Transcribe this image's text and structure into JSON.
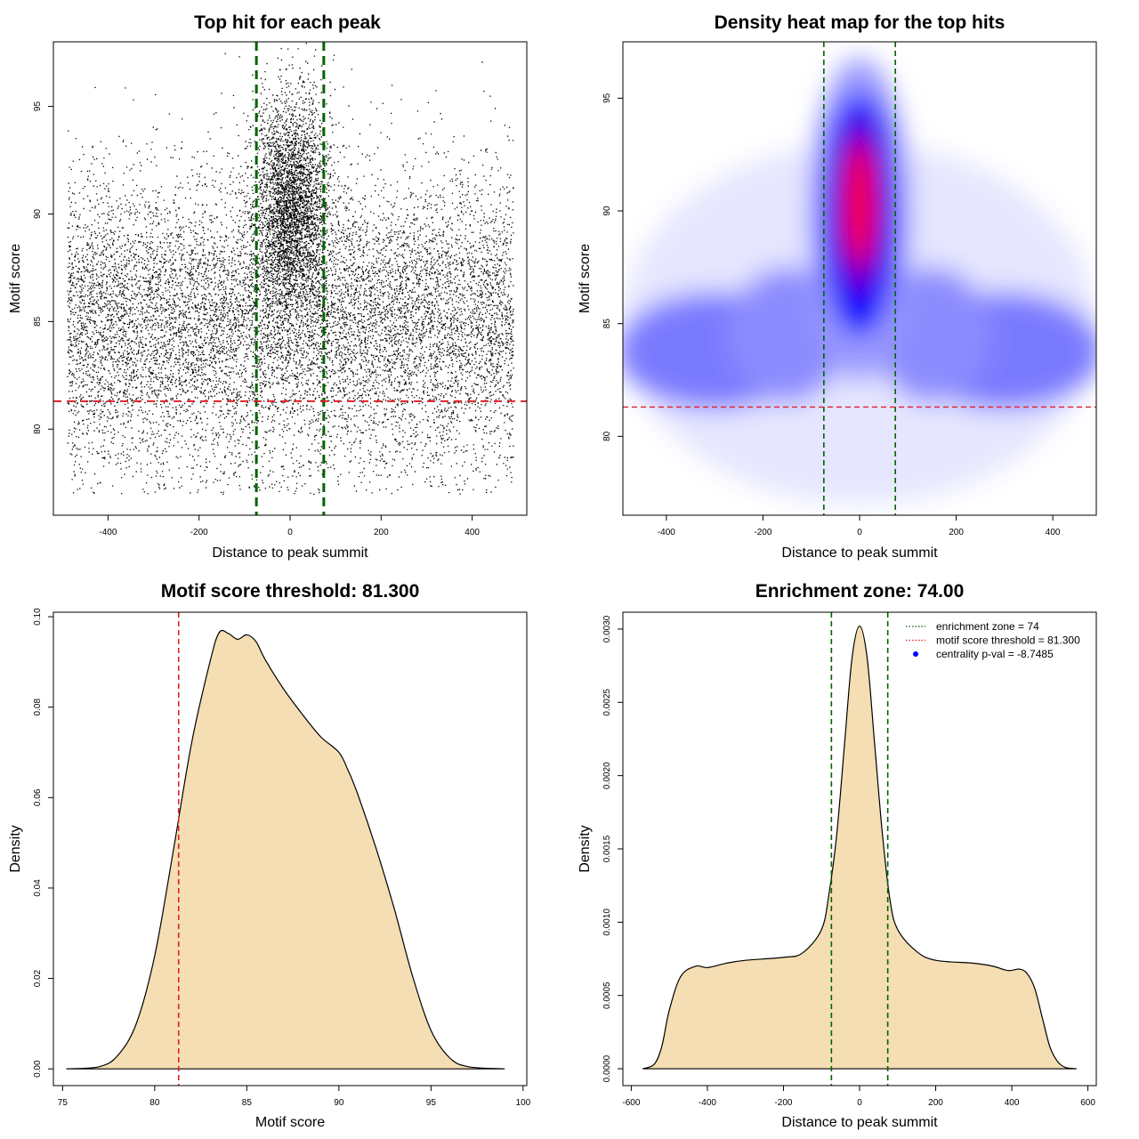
{
  "chart_data": [
    {
      "id": "scatter",
      "type": "scatter",
      "title": "Top hit for each peak",
      "xlabel": "Distance to peak summit",
      "ylabel": "Motif score",
      "xlim": [
        -520,
        520
      ],
      "ylim": [
        76,
        98
      ],
      "xticks": [
        -400,
        -200,
        0,
        200,
        400
      ],
      "yticks": [
        80,
        85,
        90,
        95
      ],
      "vlines": [
        -74,
        74
      ],
      "hline": 81.3,
      "point_count_background": 11000,
      "point_count_center": 3600,
      "background_x_range": [
        -490,
        490
      ],
      "background_y_mean": 85,
      "center_y_mean": 90.5,
      "colors": {
        "points": "#000000",
        "vline": "#006400",
        "hline": "#e0202a"
      }
    },
    {
      "id": "heatmap",
      "type": "heatmap",
      "title": "Density heat map for the top hits",
      "xlabel": "Distance to peak summit",
      "ylabel": "Motif score",
      "xlim": [
        -490,
        490
      ],
      "ylim": [
        76.5,
        97.5
      ],
      "xticks": [
        -400,
        -200,
        0,
        200,
        400
      ],
      "yticks": [
        80,
        85,
        90,
        95
      ],
      "vlines": [
        -74,
        74
      ],
      "hline": 81.3,
      "peak_center": [
        0,
        90.3
      ],
      "colors": {
        "low": "#ffffff",
        "mid": "#0000ff",
        "high": "#ff0000",
        "vline": "#006400",
        "hline": "#e0202a"
      }
    },
    {
      "id": "score_density",
      "type": "area",
      "title": "Motif score threshold: 81.300",
      "xlabel": "Motif score",
      "ylabel": "Density",
      "xlim": [
        74.5,
        100.2
      ],
      "ylim": [
        -0.0037,
        0.101
      ],
      "xticks": [
        75,
        80,
        85,
        90,
        95,
        100
      ],
      "yticks": [
        0.0,
        0.02,
        0.04,
        0.06,
        0.08,
        0.1
      ],
      "ytick_labels": [
        "0.00",
        "0.02",
        "0.04",
        "0.06",
        "0.08",
        "0.10"
      ],
      "vline": 81.3,
      "x": [
        75.2,
        77,
        78,
        79,
        80,
        81,
        82,
        83,
        83.5,
        84,
        84.5,
        85,
        85.5,
        86,
        87,
        88,
        89,
        90,
        90.5,
        91,
        92,
        93,
        94,
        95,
        96,
        97,
        99
      ],
      "y": [
        0.0,
        0.0005,
        0.003,
        0.01,
        0.025,
        0.048,
        0.072,
        0.09,
        0.0965,
        0.0963,
        0.095,
        0.096,
        0.0945,
        0.0905,
        0.084,
        0.0785,
        0.0735,
        0.07,
        0.066,
        0.061,
        0.049,
        0.0355,
        0.0205,
        0.0085,
        0.0025,
        0.0005,
        0.0
      ],
      "colors": {
        "fill": "#f5deb3",
        "line": "#000000",
        "vline": "#e0202a"
      }
    },
    {
      "id": "distance_density",
      "type": "area",
      "title": "Enrichment zone: 74.00",
      "xlabel": "Distance to peak summit",
      "ylabel": "Density",
      "xlim": [
        -622,
        622
      ],
      "ylim": [
        -0.000115,
        0.003115
      ],
      "xticks": [
        -600,
        -400,
        -200,
        0,
        200,
        400,
        600
      ],
      "yticks": [
        0.0,
        0.0005,
        0.001,
        0.0015,
        0.002,
        0.0025,
        0.003
      ],
      "ytick_labels": [
        "0.0000",
        "0.0005",
        "0.0010",
        "0.0015",
        "0.0020",
        "0.0025",
        "0.0030"
      ],
      "vlines": [
        -74,
        74
      ],
      "x": [
        -570,
        -540,
        -520,
        -500,
        -470,
        -430,
        -400,
        -350,
        -300,
        -200,
        -150,
        -100,
        -80,
        -60,
        -40,
        -20,
        0,
        20,
        40,
        60,
        80,
        100,
        150,
        200,
        300,
        350,
        390,
        420,
        440,
        460,
        480,
        500,
        520,
        540,
        570
      ],
      "y": [
        0.0,
        3e-05,
        0.00015,
        0.0004,
        0.00063,
        0.0007,
        0.00069,
        0.00072,
        0.00074,
        0.00076,
        0.00079,
        0.00095,
        0.0012,
        0.0016,
        0.0022,
        0.0028,
        0.00302,
        0.0028,
        0.0022,
        0.0016,
        0.00115,
        0.00095,
        0.0008,
        0.00074,
        0.00072,
        0.0007,
        0.00067,
        0.00068,
        0.00065,
        0.00055,
        0.00035,
        0.00015,
        5e-05,
        1e-05,
        0.0
      ],
      "legend": {
        "position": "top-right",
        "entries": [
          {
            "label": "enrichment zone = 74",
            "color": "#006400",
            "style": "dotted-line"
          },
          {
            "label": "motif score threshold = 81.300",
            "color": "#e0202a",
            "style": "dotted-line"
          },
          {
            "label": "centrality p-val = -8.7485",
            "color": "#0000ff",
            "style": "point"
          }
        ]
      },
      "colors": {
        "fill": "#f5deb3",
        "line": "#000000",
        "vline": "#006400"
      }
    }
  ]
}
